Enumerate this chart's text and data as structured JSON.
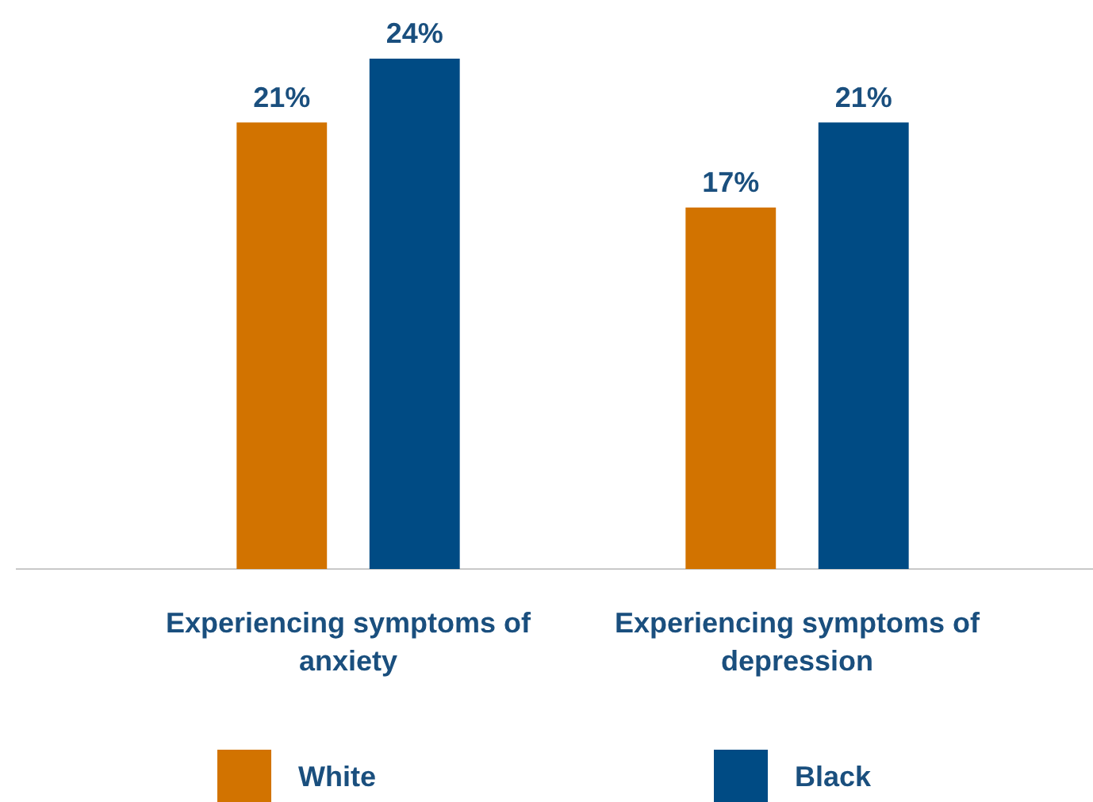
{
  "chart_data": {
    "type": "bar",
    "categories": [
      "Experiencing symptoms of anxiety",
      "Experiencing symptoms of depression"
    ],
    "series": [
      {
        "name": "White",
        "color": "#d27300",
        "values": [
          21,
          17
        ],
        "value_labels": [
          "21%",
          "17%"
        ]
      },
      {
        "name": "Black",
        "color": "#004b84",
        "values": [
          24,
          21
        ],
        "value_labels": [
          "24%",
          "21%"
        ]
      }
    ],
    "legend": "bottom"
  }
}
